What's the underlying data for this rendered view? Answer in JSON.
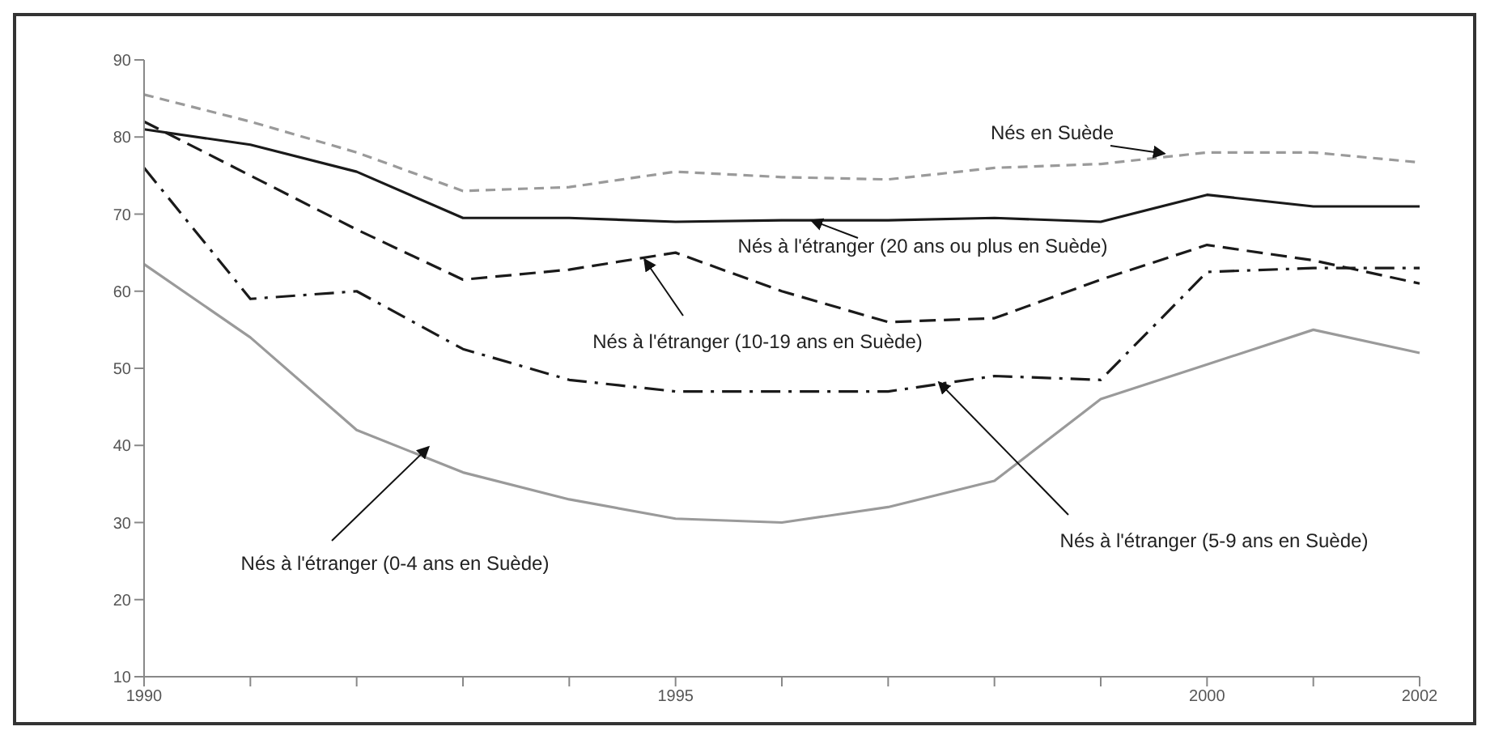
{
  "chart_data": {
    "type": "line",
    "categories": [
      "1990",
      null,
      null,
      null,
      null,
      "1995",
      null,
      null,
      null,
      null,
      "2000",
      null,
      "2002"
    ],
    "series": [
      {
        "name": "Nés en Suède",
        "color": "#9a9a9a",
        "line_style": "dashed",
        "values": [
          85.5,
          82,
          78,
          73,
          73.5,
          75.5,
          74.8,
          74.5,
          76,
          76.5,
          78,
          78,
          76.7
        ]
      },
      {
        "name": "Nés à l'étranger (20 ans ou plus en Suède)",
        "color": "#1a1a1a",
        "line_style": "solid",
        "values": [
          81,
          79,
          75.5,
          69.5,
          69.5,
          69,
          69.2,
          69.2,
          69.5,
          69,
          72.5,
          71,
          71
        ]
      },
      {
        "name": "Nés à l'étranger (10-19 ans en Suède)",
        "color": "#1a1a1a",
        "line_style": "dashed",
        "values": [
          82,
          75,
          68,
          61.5,
          62.8,
          65,
          60,
          56,
          56.5,
          61.5,
          66,
          64,
          61
        ]
      },
      {
        "name": "Nés à l'étranger (5-9 ans en Suède)",
        "color": "#1a1a1a",
        "line_style": "dotted",
        "values": [
          76,
          59,
          60,
          52.5,
          48.5,
          47,
          47,
          47,
          49,
          48.5,
          62.5,
          63,
          63
        ]
      },
      {
        "name": "Nés à l'étranger (0-4 ans en Suède)",
        "color": "#9a9a9a",
        "line_style": "solid",
        "values": [
          63.5,
          54,
          42,
          36.5,
          33,
          30.5,
          30,
          32,
          35.4,
          46,
          50.5,
          55,
          52
        ]
      }
    ],
    "ylim": [
      10,
      90
    ],
    "yticks": [
      10,
      20,
      30,
      40,
      50,
      60,
      70,
      80,
      90
    ],
    "marker": "none"
  }
}
